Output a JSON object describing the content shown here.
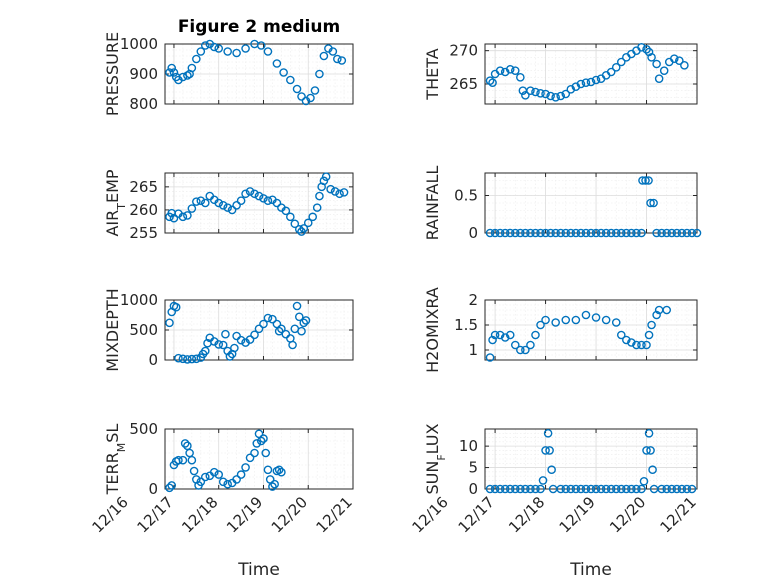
{
  "figure_title": "Figure 2 medium",
  "marker_color": "#0072BD",
  "x_axis": {
    "label": "Time",
    "ticks": [
      {
        "day": 16,
        "label": "12/16"
      },
      {
        "day": 17,
        "label": "12/17"
      },
      {
        "day": 18,
        "label": "12/18"
      },
      {
        "day": 19,
        "label": "12/19"
      },
      {
        "day": 20,
        "label": "12/20"
      },
      {
        "day": 21,
        "label": "12/21"
      }
    ]
  },
  "chart_data": [
    {
      "type": "scatter",
      "ylabel": "PRESSURE",
      "title": "Figure 2 medium",
      "xlim": [
        16.8,
        21
      ],
      "ylim": [
        800,
        1000
      ],
      "yticks": [
        800,
        900,
        1000
      ],
      "points": [
        [
          16.9,
          905
        ],
        [
          16.95,
          920
        ],
        [
          17.0,
          905
        ],
        [
          17.05,
          890
        ],
        [
          17.1,
          880
        ],
        [
          17.2,
          890
        ],
        [
          17.3,
          895
        ],
        [
          17.35,
          900
        ],
        [
          17.4,
          920
        ],
        [
          17.5,
          950
        ],
        [
          17.6,
          975
        ],
        [
          17.7,
          995
        ],
        [
          17.8,
          1000
        ],
        [
          17.9,
          990
        ],
        [
          18.0,
          985
        ],
        [
          18.2,
          975
        ],
        [
          18.4,
          970
        ],
        [
          18.6,
          985
        ],
        [
          18.8,
          1000
        ],
        [
          18.95,
          995
        ],
        [
          19.1,
          975
        ],
        [
          19.3,
          935
        ],
        [
          19.45,
          905
        ],
        [
          19.6,
          880
        ],
        [
          19.75,
          850
        ],
        [
          19.85,
          825
        ],
        [
          19.95,
          810
        ],
        [
          20.05,
          820
        ],
        [
          20.15,
          845
        ],
        [
          20.25,
          900
        ],
        [
          20.35,
          960
        ],
        [
          20.45,
          985
        ],
        [
          20.55,
          975
        ],
        [
          20.65,
          950
        ],
        [
          20.75,
          945
        ]
      ]
    },
    {
      "type": "scatter",
      "ylabel": "THETA",
      "xlim": [
        16.8,
        21
      ],
      "ylim": [
        262,
        271
      ],
      "yticks": [
        265,
        270
      ],
      "points": [
        [
          16.9,
          265.5
        ],
        [
          16.95,
          265.2
        ],
        [
          17.0,
          266.5
        ],
        [
          17.1,
          267
        ],
        [
          17.2,
          266.8
        ],
        [
          17.3,
          267.2
        ],
        [
          17.4,
          267
        ],
        [
          17.5,
          266
        ],
        [
          17.55,
          264
        ],
        [
          17.6,
          263.3
        ],
        [
          17.7,
          264
        ],
        [
          17.8,
          263.8
        ],
        [
          17.9,
          263.6
        ],
        [
          18.0,
          263.5
        ],
        [
          18.1,
          263.2
        ],
        [
          18.2,
          263
        ],
        [
          18.3,
          263.2
        ],
        [
          18.4,
          263.5
        ],
        [
          18.5,
          264.2
        ],
        [
          18.6,
          264.6
        ],
        [
          18.7,
          265
        ],
        [
          18.8,
          265.2
        ],
        [
          18.9,
          265.3
        ],
        [
          19.0,
          265.6
        ],
        [
          19.1,
          265.8
        ],
        [
          19.2,
          266.3
        ],
        [
          19.3,
          266.8
        ],
        [
          19.4,
          267.5
        ],
        [
          19.5,
          268.3
        ],
        [
          19.6,
          269
        ],
        [
          19.7,
          269.5
        ],
        [
          19.8,
          270
        ],
        [
          19.9,
          270.5
        ],
        [
          20.0,
          270.2
        ],
        [
          20.05,
          269.8
        ],
        [
          20.1,
          269
        ],
        [
          20.2,
          268
        ],
        [
          20.25,
          265.8
        ],
        [
          20.35,
          267
        ],
        [
          20.45,
          268.3
        ],
        [
          20.55,
          268.8
        ],
        [
          20.65,
          268.5
        ],
        [
          20.75,
          267.8
        ]
      ]
    },
    {
      "type": "scatter",
      "ylabel": "AIR_TEMP",
      "xlim": [
        16.8,
        21
      ],
      "ylim": [
        255,
        268
      ],
      "yticks": [
        255,
        260,
        265
      ],
      "points": [
        [
          16.9,
          258.5
        ],
        [
          16.95,
          259.3
        ],
        [
          17.0,
          258.2
        ],
        [
          17.1,
          259.2
        ],
        [
          17.2,
          258.5
        ],
        [
          17.3,
          258.8
        ],
        [
          17.4,
          260.3
        ],
        [
          17.5,
          261.8
        ],
        [
          17.6,
          262
        ],
        [
          17.7,
          261.5
        ],
        [
          17.8,
          263
        ],
        [
          17.9,
          262.2
        ],
        [
          18.0,
          261.5
        ],
        [
          18.1,
          261
        ],
        [
          18.2,
          260.5
        ],
        [
          18.3,
          260
        ],
        [
          18.4,
          261
        ],
        [
          18.5,
          262
        ],
        [
          18.6,
          263.5
        ],
        [
          18.7,
          264
        ],
        [
          18.8,
          263.5
        ],
        [
          18.9,
          263
        ],
        [
          19.0,
          262.5
        ],
        [
          19.1,
          262
        ],
        [
          19.2,
          262.2
        ],
        [
          19.3,
          261.5
        ],
        [
          19.4,
          260.5
        ],
        [
          19.5,
          259.8
        ],
        [
          19.6,
          258.5
        ],
        [
          19.7,
          257
        ],
        [
          19.8,
          255.8
        ],
        [
          19.85,
          255.3
        ],
        [
          19.9,
          256
        ],
        [
          20.0,
          257.2
        ],
        [
          20.1,
          258.5
        ],
        [
          20.2,
          260.5
        ],
        [
          20.25,
          263
        ],
        [
          20.3,
          265
        ],
        [
          20.35,
          266.3
        ],
        [
          20.4,
          267.2
        ],
        [
          20.5,
          264.5
        ],
        [
          20.6,
          264
        ],
        [
          20.7,
          263.5
        ],
        [
          20.8,
          263.8
        ]
      ]
    },
    {
      "type": "scatter",
      "ylabel": "RAINFALL",
      "xlim": [
        16.8,
        21
      ],
      "ylim": [
        0,
        0.8
      ],
      "yticks": [
        0,
        0.5
      ],
      "points": [
        [
          16.9,
          0
        ],
        [
          17.0,
          0
        ],
        [
          17.1,
          0
        ],
        [
          17.2,
          0
        ],
        [
          17.3,
          0
        ],
        [
          17.4,
          0
        ],
        [
          17.5,
          0
        ],
        [
          17.6,
          0
        ],
        [
          17.7,
          0
        ],
        [
          17.8,
          0
        ],
        [
          17.9,
          0
        ],
        [
          18.0,
          0
        ],
        [
          18.1,
          0
        ],
        [
          18.2,
          0
        ],
        [
          18.3,
          0
        ],
        [
          18.4,
          0
        ],
        [
          18.5,
          0
        ],
        [
          18.6,
          0
        ],
        [
          18.7,
          0
        ],
        [
          18.8,
          0
        ],
        [
          18.9,
          0
        ],
        [
          19.0,
          0
        ],
        [
          19.1,
          0
        ],
        [
          19.2,
          0
        ],
        [
          19.3,
          0
        ],
        [
          19.4,
          0
        ],
        [
          19.5,
          0
        ],
        [
          19.6,
          0
        ],
        [
          19.7,
          0
        ],
        [
          19.8,
          0
        ],
        [
          19.9,
          0
        ],
        [
          19.92,
          0.7
        ],
        [
          19.98,
          0.7
        ],
        [
          20.04,
          0.7
        ],
        [
          20.08,
          0.4
        ],
        [
          20.14,
          0.4
        ],
        [
          20.2,
          0
        ],
        [
          20.3,
          0
        ],
        [
          20.4,
          0
        ],
        [
          20.5,
          0
        ],
        [
          20.6,
          0
        ],
        [
          20.7,
          0
        ],
        [
          20.8,
          0
        ],
        [
          20.9,
          0
        ],
        [
          21.0,
          0
        ]
      ]
    },
    {
      "type": "scatter",
      "ylabel": "MIXDEPTH",
      "xlim": [
        16.8,
        21
      ],
      "ylim": [
        0,
        1000
      ],
      "yticks": [
        0,
        500,
        1000
      ],
      "points": [
        [
          16.9,
          620
        ],
        [
          16.95,
          800
        ],
        [
          17.0,
          900
        ],
        [
          17.05,
          880
        ],
        [
          17.1,
          30
        ],
        [
          17.2,
          20
        ],
        [
          17.3,
          10
        ],
        [
          17.4,
          15
        ],
        [
          17.5,
          20
        ],
        [
          17.6,
          40
        ],
        [
          17.65,
          100
        ],
        [
          17.7,
          150
        ],
        [
          17.75,
          280
        ],
        [
          17.8,
          370
        ],
        [
          17.9,
          310
        ],
        [
          18.0,
          260
        ],
        [
          18.1,
          250
        ],
        [
          18.15,
          430
        ],
        [
          18.2,
          150
        ],
        [
          18.25,
          60
        ],
        [
          18.3,
          100
        ],
        [
          18.35,
          200
        ],
        [
          18.4,
          400
        ],
        [
          18.5,
          330
        ],
        [
          18.6,
          290
        ],
        [
          18.7,
          340
        ],
        [
          18.8,
          420
        ],
        [
          18.9,
          520
        ],
        [
          19.0,
          600
        ],
        [
          19.1,
          700
        ],
        [
          19.2,
          680
        ],
        [
          19.3,
          600
        ],
        [
          19.35,
          480
        ],
        [
          19.4,
          520
        ],
        [
          19.5,
          430
        ],
        [
          19.6,
          360
        ],
        [
          19.65,
          250
        ],
        [
          19.7,
          520
        ],
        [
          19.75,
          900
        ],
        [
          19.8,
          720
        ],
        [
          19.85,
          480
        ],
        [
          19.9,
          620
        ],
        [
          19.95,
          660
        ]
      ]
    },
    {
      "type": "scatter",
      "ylabel": "H2OMIXRA",
      "xlim": [
        16.8,
        21
      ],
      "ylim": [
        0.8,
        2
      ],
      "yticks": [
        1,
        1.5,
        2
      ],
      "points": [
        [
          16.9,
          0.85
        ],
        [
          16.95,
          1.2
        ],
        [
          17.0,
          1.3
        ],
        [
          17.1,
          1.3
        ],
        [
          17.2,
          1.25
        ],
        [
          17.3,
          1.3
        ],
        [
          17.4,
          1.1
        ],
        [
          17.5,
          1.0
        ],
        [
          17.6,
          1.0
        ],
        [
          17.7,
          1.1
        ],
        [
          17.8,
          1.3
        ],
        [
          17.9,
          1.5
        ],
        [
          18.0,
          1.6
        ],
        [
          18.2,
          1.55
        ],
        [
          18.4,
          1.6
        ],
        [
          18.6,
          1.6
        ],
        [
          18.8,
          1.7
        ],
        [
          19.0,
          1.65
        ],
        [
          19.2,
          1.6
        ],
        [
          19.4,
          1.55
        ],
        [
          19.5,
          1.3
        ],
        [
          19.6,
          1.2
        ],
        [
          19.7,
          1.15
        ],
        [
          19.8,
          1.1
        ],
        [
          19.9,
          1.1
        ],
        [
          20.0,
          1.1
        ],
        [
          20.05,
          1.3
        ],
        [
          20.1,
          1.5
        ],
        [
          20.2,
          1.7
        ],
        [
          20.25,
          1.8
        ],
        [
          20.4,
          1.8
        ]
      ]
    },
    {
      "type": "scatter",
      "ylabel": "TERR_MSL",
      "xlim": [
        16.8,
        21
      ],
      "ylim": [
        0,
        500
      ],
      "yticks": [
        0,
        500
      ],
      "points": [
        [
          16.9,
          10
        ],
        [
          16.95,
          30
        ],
        [
          17.0,
          200
        ],
        [
          17.05,
          230
        ],
        [
          17.1,
          240
        ],
        [
          17.2,
          240
        ],
        [
          17.25,
          380
        ],
        [
          17.3,
          360
        ],
        [
          17.35,
          300
        ],
        [
          17.4,
          240
        ],
        [
          17.45,
          150
        ],
        [
          17.5,
          80
        ],
        [
          17.55,
          30
        ],
        [
          17.6,
          60
        ],
        [
          17.7,
          100
        ],
        [
          17.8,
          110
        ],
        [
          17.9,
          140
        ],
        [
          18.0,
          120
        ],
        [
          18.1,
          60
        ],
        [
          18.2,
          40
        ],
        [
          18.3,
          50
        ],
        [
          18.4,
          80
        ],
        [
          18.5,
          120
        ],
        [
          18.6,
          180
        ],
        [
          18.7,
          260
        ],
        [
          18.8,
          300
        ],
        [
          18.85,
          380
        ],
        [
          18.9,
          460
        ],
        [
          18.95,
          400
        ],
        [
          19.0,
          420
        ],
        [
          19.05,
          300
        ],
        [
          19.1,
          160
        ],
        [
          19.15,
          80
        ],
        [
          19.2,
          20
        ],
        [
          19.25,
          40
        ],
        [
          19.3,
          150
        ],
        [
          19.35,
          160
        ],
        [
          19.4,
          140
        ]
      ]
    },
    {
      "type": "scatter",
      "ylabel": "SUN_FLUX",
      "xlim": [
        16.8,
        21
      ],
      "ylim": [
        0,
        14
      ],
      "yticks": [
        0,
        5,
        10
      ],
      "points": [
        [
          16.9,
          0
        ],
        [
          17.0,
          0
        ],
        [
          17.1,
          0
        ],
        [
          17.2,
          0
        ],
        [
          17.3,
          0
        ],
        [
          17.4,
          0
        ],
        [
          17.5,
          0
        ],
        [
          17.6,
          0
        ],
        [
          17.7,
          0
        ],
        [
          17.8,
          0
        ],
        [
          17.9,
          0
        ],
        [
          17.95,
          2
        ],
        [
          18.0,
          9
        ],
        [
          18.05,
          13
        ],
        [
          18.08,
          9
        ],
        [
          18.12,
          4.5
        ],
        [
          18.15,
          0
        ],
        [
          18.3,
          0
        ],
        [
          18.4,
          0
        ],
        [
          18.5,
          0
        ],
        [
          18.6,
          0
        ],
        [
          18.7,
          0
        ],
        [
          18.8,
          0
        ],
        [
          18.9,
          0
        ],
        [
          19.0,
          0
        ],
        [
          19.1,
          0
        ],
        [
          19.2,
          0
        ],
        [
          19.3,
          0
        ],
        [
          19.4,
          0
        ],
        [
          19.5,
          0
        ],
        [
          19.6,
          0
        ],
        [
          19.7,
          0
        ],
        [
          19.8,
          0
        ],
        [
          19.9,
          0
        ],
        [
          19.95,
          1.8
        ],
        [
          20.0,
          9
        ],
        [
          20.05,
          13
        ],
        [
          20.08,
          9
        ],
        [
          20.12,
          4.5
        ],
        [
          20.15,
          0
        ],
        [
          20.3,
          0
        ],
        [
          20.4,
          0
        ],
        [
          20.5,
          0
        ],
        [
          20.6,
          0
        ],
        [
          20.7,
          0
        ],
        [
          20.8,
          0
        ],
        [
          20.9,
          0
        ]
      ]
    }
  ]
}
